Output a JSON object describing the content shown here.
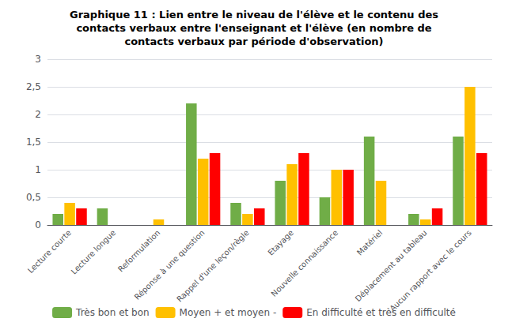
{
  "chart_data": {
    "type": "bar",
    "title": "Graphique 11 : Lien entre le niveau de l'élève et le contenu des\ncontacts verbaux entre l'enseignant et l'élève (en nombre de\ncontacts verbaux par période d'observation)",
    "categories": [
      "Lecture courte",
      "Lecture longue",
      "Reformulation",
      "Réponse à une question",
      "Rappel d'une leçon/règle",
      "Etayage",
      "Nouvelle connaissance",
      "Matériel",
      "Déplacement au tableau",
      "Aucun rapport avec le cours"
    ],
    "series": [
      {
        "name": "Très bon et bon",
        "color": "#70ad47",
        "values": [
          0.2,
          0.3,
          0.0,
          2.2,
          0.4,
          0.8,
          0.5,
          1.6,
          0.2,
          1.6
        ]
      },
      {
        "name": "Moyen + et moyen -",
        "color": "#ffc000",
        "values": [
          0.4,
          0.0,
          0.1,
          1.2,
          0.2,
          1.1,
          1.0,
          0.8,
          0.1,
          2.5
        ]
      },
      {
        "name": "En difficulté et très en difficulté",
        "color": "#ff0000",
        "values": [
          0.3,
          0.0,
          0.0,
          1.3,
          0.3,
          1.3,
          1.0,
          0.0,
          0.3,
          1.3
        ]
      }
    ],
    "ylim": [
      0,
      3
    ],
    "yticks": [
      0,
      {
        "value": 0.5,
        "label": "0,5"
      },
      1,
      {
        "value": 1.5,
        "label": "1,5"
      },
      2,
      {
        "value": 2.5,
        "label": "2,5"
      },
      3
    ],
    "grid": true,
    "legend": "bottom"
  }
}
